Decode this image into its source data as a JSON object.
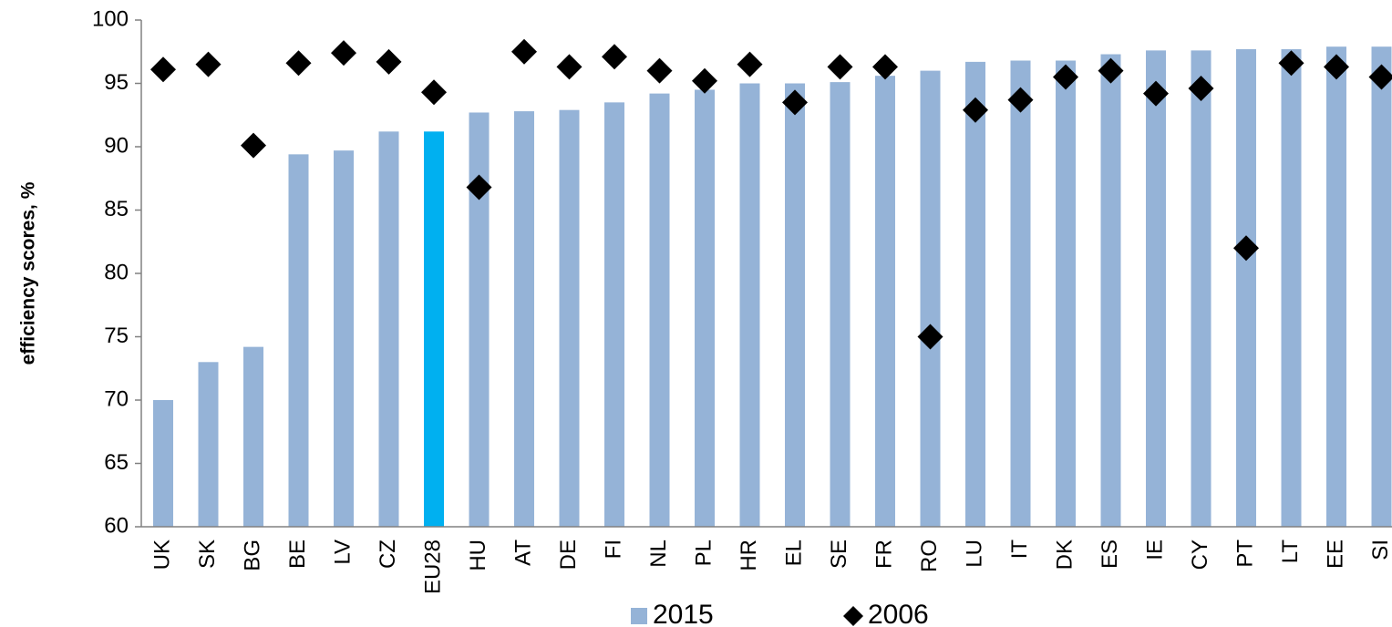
{
  "chart_data": {
    "type": "bar",
    "y_label": "efficiency  scores, %",
    "categories": [
      "UK",
      "SK",
      "BG",
      "BE",
      "LV",
      "CZ",
      "EU28",
      "HU",
      "AT",
      "DE",
      "FI",
      "NL",
      "PL",
      "HR",
      "EL",
      "SE",
      "FR",
      "RO",
      "LU",
      "IT",
      "DK",
      "ES",
      "IE",
      "CY",
      "PT",
      "LT",
      "EE",
      "SI"
    ],
    "series": [
      {
        "name": "2015",
        "type": "bar",
        "color": "#95b3d7",
        "colors": [
          "#95b3d7",
          "#95b3d7",
          "#95b3d7",
          "#95b3d7",
          "#95b3d7",
          "#95b3d7",
          "#00b0f0",
          "#95b3d7",
          "#95b3d7",
          "#95b3d7",
          "#95b3d7",
          "#95b3d7",
          "#95b3d7",
          "#95b3d7",
          "#95b3d7",
          "#95b3d7",
          "#95b3d7",
          "#95b3d7",
          "#95b3d7",
          "#95b3d7",
          "#95b3d7",
          "#95b3d7",
          "#95b3d7",
          "#95b3d7",
          "#95b3d7",
          "#95b3d7",
          "#95b3d7",
          "#95b3d7"
        ],
        "values": [
          70.0,
          73.0,
          74.2,
          89.4,
          89.7,
          91.2,
          91.2,
          92.7,
          92.8,
          92.9,
          93.5,
          94.2,
          94.5,
          95.0,
          95.0,
          95.1,
          95.6,
          96.0,
          96.7,
          96.8,
          96.8,
          97.3,
          97.6,
          97.6,
          97.7,
          97.7,
          97.9,
          97.9
        ]
      },
      {
        "name": "2006",
        "type": "diamond",
        "color": "#000000",
        "values": [
          96.1,
          96.5,
          90.1,
          96.6,
          97.4,
          96.7,
          94.3,
          86.8,
          97.5,
          96.3,
          97.1,
          96.0,
          95.2,
          96.5,
          93.5,
          96.3,
          96.3,
          75.0,
          92.9,
          93.7,
          95.5,
          96.0,
          94.2,
          94.6,
          82.0,
          96.6,
          96.3,
          95.5
        ]
      }
    ],
    "ylim": [
      60,
      100
    ],
    "yticks": [
      60,
      65,
      70,
      75,
      80,
      85,
      90,
      95,
      100
    ],
    "grid": false,
    "legend": "bottom"
  }
}
